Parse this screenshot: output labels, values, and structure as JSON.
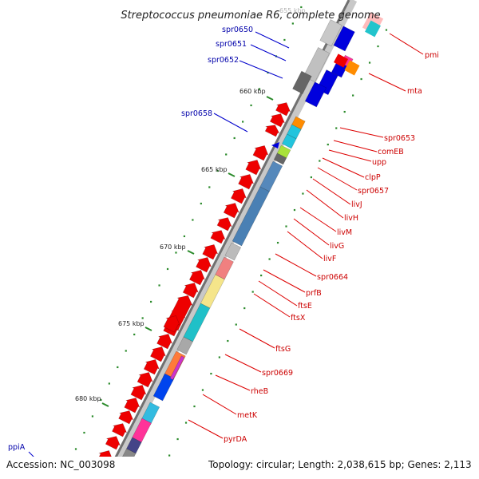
{
  "title": "Streptococcus pneumoniae R6, complete genome",
  "accession": "Accession: NC_003098",
  "topology": "Topology: circular; Length: 2,038,615 bp; Genes: 2,113",
  "colors": {
    "backbone_dark": "#707070",
    "backbone_light": "#c8c8c8",
    "tick_major": "#2a8a2a",
    "tick_minor": "#2a8a2a",
    "label_right": "#cc0000",
    "label_left": "#0000aa",
    "leader_right": "#dd0000",
    "leader_left": "#0000cc",
    "gene_red": "#ee0000",
    "gene_blue": "#0000dd"
  },
  "axis": {
    "kbp_labels": [
      "655 kbp",
      "660 kbp",
      "665 kbp",
      "670 kbp",
      "675 kbp",
      "680 kbp"
    ]
  },
  "gene_labels_right": [
    "pmi",
    "mta",
    "spr0653",
    "comEB",
    "upp",
    "clpP",
    "spr0657",
    "livJ",
    "livH",
    "livM",
    "livG",
    "livF",
    "spr0664",
    "prfB",
    "ftsE",
    "ftsX",
    "ftsG",
    "spr0669",
    "rheB",
    "metK",
    "pyrDA"
  ],
  "gene_labels_left": [
    "spr0650",
    "spr0651",
    "spr0652",
    "spr0658",
    "ppiA"
  ]
}
